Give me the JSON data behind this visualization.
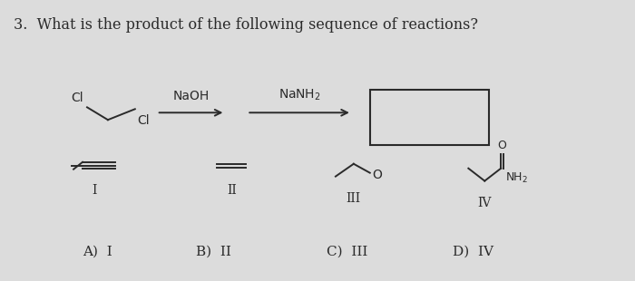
{
  "title": "3.  What is the product of the following sequence of reactions?",
  "bg_color": "#dcdcdc",
  "text_color": "#2a2a2a",
  "title_fontsize": 11.5,
  "answer_labels": [
    "A)  I",
    "B)  II",
    "C)  III",
    "D)  IV"
  ]
}
